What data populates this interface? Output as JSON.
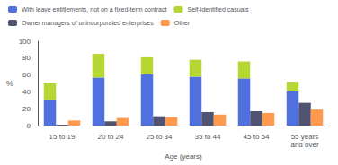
{
  "chart_data": {
    "type": "bar",
    "categories": [
      "15 to 19",
      "20 to 24",
      "25 to 34",
      "35 to 44",
      "45 to 54",
      "55 years\nand over"
    ],
    "series": [
      {
        "name": "With leave entitlements, not on a fixed-term contract",
        "values": [
          30,
          57,
          61,
          58,
          56,
          41
        ],
        "stacked": true
      },
      {
        "name": "Self-identified casuals",
        "values": [
          20,
          28,
          20,
          20,
          20,
          11
        ],
        "stacked": true
      },
      {
        "name": "Owner managers of unincorporated enterprises",
        "values": [
          1,
          5,
          11,
          16,
          17,
          27
        ]
      },
      {
        "name": "Other",
        "values": [
          6,
          9,
          10,
          13,
          15,
          19
        ]
      }
    ],
    "xlabel": "Age (years)",
    "ylabel": "%",
    "ylim": [
      0,
      100
    ],
    "yticks": [
      0,
      20,
      40,
      60,
      80,
      100
    ],
    "grid": false,
    "legend": "upper left"
  }
}
